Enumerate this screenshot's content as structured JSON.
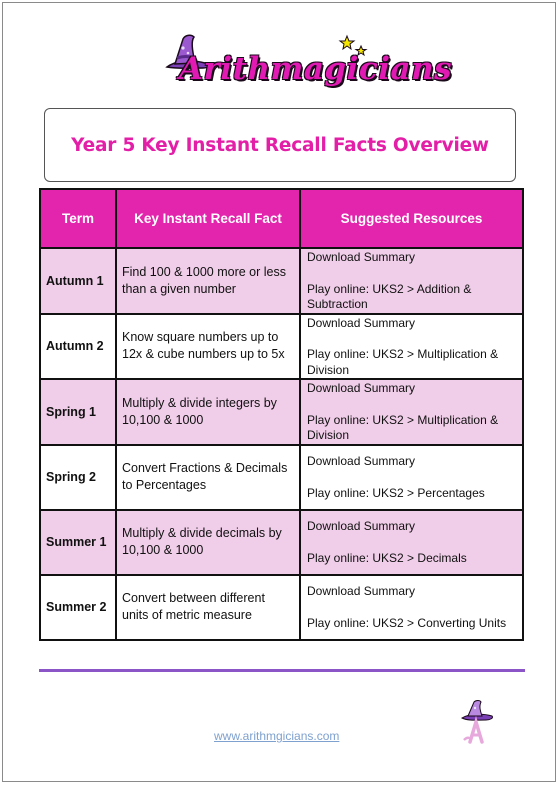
{
  "logo": {
    "text": "Arithmagicians"
  },
  "title": "Year 5 Key Instant Recall Facts Overview",
  "table": {
    "headers": [
      "Term",
      "Key Instant Recall Fact",
      "Suggested Resources"
    ],
    "rows": [
      {
        "term": "Autumn 1",
        "fact": "Find 100 & 1000 more or less than a given number",
        "download": "Download Summary",
        "play": "Play online: UKS2 > Addition & Subtraction"
      },
      {
        "term": "Autumn 2",
        "fact": "Know square numbers up to 12x & cube numbers up to 5x",
        "download": "Download Summary",
        "play": "Play online: UKS2 > Multiplication & Division"
      },
      {
        "term": "Spring 1",
        "fact": "Multiply & divide integers by 10,100 & 1000",
        "download": "Download Summary",
        "play": "Play online: UKS2 > Multiplication & Division"
      },
      {
        "term": "Spring 2",
        "fact": "Convert Fractions & Decimals to Percentages",
        "download": "Download Summary",
        "play": "Play online: UKS2 > Percentages"
      },
      {
        "term": "Summer 1",
        "fact": "Multiply & divide decimals by 10,100 & 1000",
        "download": "Download Summary",
        "play": "Play online: UKS2 > Decimals"
      },
      {
        "term": "Summer 2",
        "fact": "Convert between different units of metric measure",
        "download": "Download Summary",
        "play": "Play online: UKS2 > Converting Units"
      }
    ]
  },
  "footer": {
    "website": "www.arithmgicians.com"
  },
  "colors": {
    "accent": "#e325ad",
    "row_shade": "#f0cde8",
    "divider": "#8b55c7",
    "hat": "#9b59d0"
  },
  "icons": {
    "header_logo": "wizard-hat-icon",
    "footer_logo": "wizard-hat-a-icon"
  }
}
